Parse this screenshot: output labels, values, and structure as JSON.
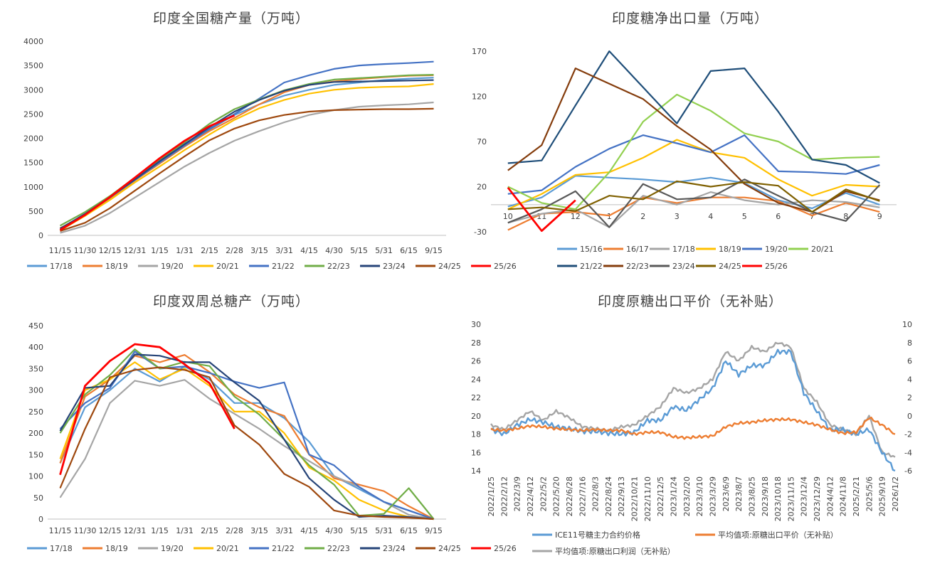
{
  "chart_data": [
    {
      "type": "line",
      "title": "印度全国糖产量（万吨）",
      "categories": [
        "11/15",
        "11/30",
        "12/15",
        "12/31",
        "1/15",
        "1/31",
        "2/15",
        "2/28",
        "3/15",
        "3/31",
        "4/15",
        "4/30",
        "5/15",
        "5/31",
        "6/15",
        "9/15"
      ],
      "ylim": [
        0,
        4000
      ],
      "yticks": [
        0,
        500,
        1000,
        1500,
        2000,
        2500,
        3000,
        3500,
        4000
      ],
      "legend_position": "bottom",
      "series": [
        {
          "name": "17/18",
          "color": "#5b9bd5",
          "values": [
            120,
            450,
            780,
            1150,
            1500,
            1850,
            2180,
            2480,
            2700,
            2880,
            3000,
            3100,
            3150,
            3200,
            3230,
            3250
          ]
        },
        {
          "name": "18/19",
          "color": "#ed7d31",
          "values": [
            150,
            420,
            760,
            1130,
            1480,
            1830,
            2150,
            2420,
            2700,
            2950,
            3100,
            3170,
            3220,
            3260,
            3290,
            3300
          ]
        },
        {
          "name": "19/20",
          "color": "#a5a5a5",
          "values": [
            50,
            200,
            460,
            780,
            1100,
            1420,
            1700,
            1950,
            2150,
            2330,
            2480,
            2580,
            2650,
            2680,
            2700,
            2740
          ]
        },
        {
          "name": "20/21",
          "color": "#ffc000",
          "values": [
            100,
            400,
            730,
            1090,
            1420,
            1760,
            2080,
            2380,
            2620,
            2790,
            2920,
            3000,
            3040,
            3060,
            3070,
            3120
          ]
        },
        {
          "name": "21/22",
          "color": "#4472c4",
          "values": [
            110,
            420,
            780,
            1140,
            1500,
            1850,
            2190,
            2500,
            2820,
            3150,
            3300,
            3430,
            3500,
            3530,
            3550,
            3580
          ]
        },
        {
          "name": "22/23",
          "color": "#70ad47",
          "values": [
            200,
            480,
            810,
            1190,
            1560,
            1920,
            2300,
            2600,
            2800,
            2990,
            3120,
            3210,
            3240,
            3270,
            3300,
            3310
          ]
        },
        {
          "name": "23/24",
          "color": "#264478",
          "values": [
            140,
            440,
            790,
            1150,
            1530,
            1880,
            2230,
            2550,
            2790,
            2980,
            3100,
            3160,
            3170,
            3180,
            3190,
            3200
          ]
        },
        {
          "name": "24/25",
          "color": "#9e480e",
          "values": [
            90,
            260,
            560,
            920,
            1280,
            1630,
            1960,
            2200,
            2370,
            2480,
            2550,
            2580,
            2590,
            2600,
            2600,
            2610
          ]
        },
        {
          "name": "25/26",
          "color": "#ff0000",
          "values": [
            110,
            420,
            790,
            1190,
            1590,
            1950,
            2250,
            2470,
            null,
            null,
            null,
            null,
            null,
            null,
            null,
            null
          ]
        }
      ]
    },
    {
      "type": "line",
      "title": "印度糖净出口量（万吨）",
      "categories": [
        "10",
        "11",
        "12",
        "1",
        "2",
        "3",
        "4",
        "5",
        "6",
        "7",
        "8",
        "9"
      ],
      "ylim": [
        -30,
        170
      ],
      "yticks": [
        -30,
        20,
        70,
        120,
        170
      ],
      "legend_position": "bottom",
      "series": [
        {
          "name": "15/16",
          "color": "#5b9bd5",
          "values": [
            -2,
            8,
            32,
            30,
            28,
            25,
            30,
            24,
            5,
            -4,
            13,
            0
          ]
        },
        {
          "name": "16/17",
          "color": "#ed7d31",
          "values": [
            -28,
            -10,
            -8,
            -12,
            8,
            2,
            8,
            8,
            4,
            -12,
            2,
            -8
          ]
        },
        {
          "name": "17/18",
          "color": "#a5a5a5",
          "values": [
            -20,
            -10,
            -5,
            -25,
            10,
            0,
            14,
            5,
            0,
            5,
            3,
            -3
          ]
        },
        {
          "name": "18/19",
          "color": "#ffc000",
          "values": [
            -5,
            12,
            33,
            36,
            52,
            72,
            58,
            52,
            28,
            10,
            22,
            20
          ]
        },
        {
          "name": "19/20",
          "color": "#4472c4",
          "values": [
            12,
            16,
            42,
            62,
            77,
            68,
            58,
            77,
            37,
            36,
            34,
            44
          ]
        },
        {
          "name": "20/21",
          "color": "#92d050",
          "values": [
            20,
            2,
            -5,
            36,
            92,
            122,
            104,
            79,
            70,
            50,
            52,
            53
          ]
        },
        {
          "name": "21/22",
          "color": "#1f4e79",
          "values": [
            46,
            49,
            110,
            170,
            130,
            90,
            148,
            151,
            103,
            50,
            44,
            24
          ]
        },
        {
          "name": "22/23",
          "color": "#843c0c",
          "values": [
            38,
            66,
            151,
            134,
            117,
            87,
            61,
            23,
            2,
            -8,
            15,
            5
          ]
        },
        {
          "name": "23/24",
          "color": "#595959",
          "values": [
            -20,
            -5,
            15,
            -25,
            23,
            6,
            8,
            28,
            10,
            -8,
            -18,
            22
          ]
        },
        {
          "name": "24/25",
          "color": "#7f6000",
          "values": [
            -5,
            -3,
            -7,
            10,
            6,
            26,
            20,
            25,
            21,
            -8,
            17,
            4
          ]
        },
        {
          "name": "25/26",
          "color": "#ff0000",
          "values": [
            19,
            -29,
            5,
            null,
            null,
            null,
            null,
            null,
            null,
            null,
            null,
            null
          ]
        }
      ]
    },
    {
      "type": "line",
      "title": "印度双周总糖产（万吨）",
      "categories": [
        "11/15",
        "11/30",
        "12/15",
        "12/31",
        "1/15",
        "1/31",
        "2/15",
        "2/28",
        "3/15",
        "3/31",
        "4/15",
        "4/30",
        "5/15",
        "5/31",
        "6/15",
        "9/15"
      ],
      "ylim": [
        0,
        450
      ],
      "yticks": [
        0,
        50,
        100,
        150,
        200,
        250,
        300,
        350,
        400,
        450
      ],
      "legend_position": "bottom",
      "series": [
        {
          "name": "17/18",
          "color": "#5b9bd5",
          "values": [
            130,
            260,
            300,
            350,
            320,
            355,
            325,
            270,
            270,
            235,
            180,
            100,
            70,
            40,
            20,
            0
          ]
        },
        {
          "name": "18/19",
          "color": "#ed7d31",
          "values": [
            130,
            285,
            325,
            380,
            365,
            382,
            342,
            290,
            260,
            240,
            150,
            95,
            80,
            65,
            30,
            0
          ]
        },
        {
          "name": "19/20",
          "color": "#a5a5a5",
          "values": [
            50,
            140,
            270,
            322,
            310,
            324,
            280,
            245,
            210,
            170,
            135,
            100,
            75,
            40,
            10,
            0
          ]
        },
        {
          "name": "20/21",
          "color": "#ffc000",
          "values": [
            140,
            300,
            325,
            365,
            325,
            350,
            310,
            250,
            250,
            200,
            120,
            90,
            45,
            20,
            5,
            0
          ]
        },
        {
          "name": "21/22",
          "color": "#4472c4",
          "values": [
            210,
            270,
            305,
            390,
            350,
            355,
            340,
            320,
            305,
            318,
            150,
            125,
            75,
            40,
            20,
            0
          ]
        },
        {
          "name": "22/23",
          "color": "#70ad47",
          "values": [
            200,
            290,
            335,
            395,
            350,
            366,
            356,
            285,
            243,
            185,
            125,
            80,
            8,
            12,
            72,
            0
          ]
        },
        {
          "name": "23/24",
          "color": "#264478",
          "values": [
            205,
            305,
            310,
            383,
            380,
            365,
            365,
            318,
            275,
            185,
            95,
            45,
            5,
            8,
            5,
            0
          ]
        },
        {
          "name": "24/25",
          "color": "#9e480e",
          "values": [
            72,
            210,
            330,
            347,
            353,
            347,
            330,
            218,
            173,
            105,
            75,
            20,
            8,
            5,
            3,
            0
          ]
        },
        {
          "name": "25/26",
          "color": "#ff0000",
          "values": [
            103,
            310,
            368,
            407,
            400,
            360,
            316,
            210,
            null,
            null,
            null,
            null,
            null,
            null,
            null,
            null
          ]
        }
      ]
    },
    {
      "type": "line",
      "title": "印度原糖出口平价（无补贴）",
      "categories": [
        "2022/1/25",
        "2022/2/12",
        "2022/3/9",
        "2022/4/12",
        "2022/5/2",
        "2022/5/20",
        "2022/6/28",
        "2022/7/16",
        "2022/8/3",
        "2022/8/24",
        "2022/9/13",
        "2022/10/21",
        "2022/11/10",
        "2022/12/5",
        "2023/1/24",
        "2023/2/20",
        "2023/3/10",
        "2023/3/29",
        "2023/6/9",
        "2023/8/7",
        "2023/8/25",
        "2023/9/18",
        "2023/10/18",
        "2023/11/15",
        "2023/12/4",
        "2023/12/29",
        "2024/4/12",
        "2024/11/8",
        "2025/2/21",
        "2025/5/6",
        "2025/9/19",
        "2026/1/2"
      ],
      "ylim_left": [
        14,
        30
      ],
      "yticks_left": [
        14,
        16,
        18,
        20,
        22,
        24,
        26,
        28,
        30
      ],
      "ylim_right": [
        -6,
        10
      ],
      "yticks_right": [
        -6,
        -4,
        -2,
        0,
        2,
        4,
        6,
        8,
        10
      ],
      "legend_position": "bottom",
      "series": [
        {
          "name": "ICE11号糖主力合约价格",
          "axis": "left",
          "color": "#5b9bd5",
          "values": [
            18.5,
            18.0,
            19.0,
            19.6,
            19.3,
            18.8,
            18.6,
            18.3,
            18.3,
            18.1,
            18.0,
            18.2,
            19.5,
            19.5,
            21.0,
            20.6,
            21.8,
            23.0,
            26.0,
            24.5,
            25.5,
            25.5,
            27.0,
            27.0,
            22.5,
            20.5,
            18.5,
            18.5,
            18.0,
            18.5,
            16.0,
            14.0
          ]
        },
        {
          "name": "平均值项:原糖出口平价（无补贴）",
          "axis": "right",
          "color": "#ed7d31",
          "values": [
            -1.5,
            -1.6,
            -1.4,
            -1.1,
            -1.2,
            -1.4,
            -1.5,
            -1.6,
            -1.5,
            -1.6,
            -1.6,
            -2.0,
            -1.8,
            -1.8,
            -2.3,
            -2.4,
            -2.3,
            -2.2,
            -1.2,
            -0.8,
            -0.7,
            -0.5,
            -0.4,
            -0.4,
            -0.7,
            -1.0,
            -1.5,
            -1.9,
            -1.8,
            -0.2,
            -1.0,
            -2.0
          ]
        },
        {
          "name": "平均值项:原糖出口利润（无补贴）",
          "axis": "right",
          "color": "#a5a5a5",
          "values": [
            -1.0,
            -1.5,
            -0.5,
            0.5,
            -0.5,
            0.5,
            -0.2,
            -1.2,
            -1.4,
            -1.6,
            -1.2,
            -1.0,
            0.0,
            1.0,
            3.0,
            2.5,
            3.0,
            4.0,
            7.0,
            6.0,
            7.5,
            7.0,
            8.0,
            7.5,
            3.0,
            1.5,
            -1.0,
            -1.5,
            -2.0,
            0.0,
            -4.0,
            -4.5
          ]
        }
      ]
    }
  ]
}
